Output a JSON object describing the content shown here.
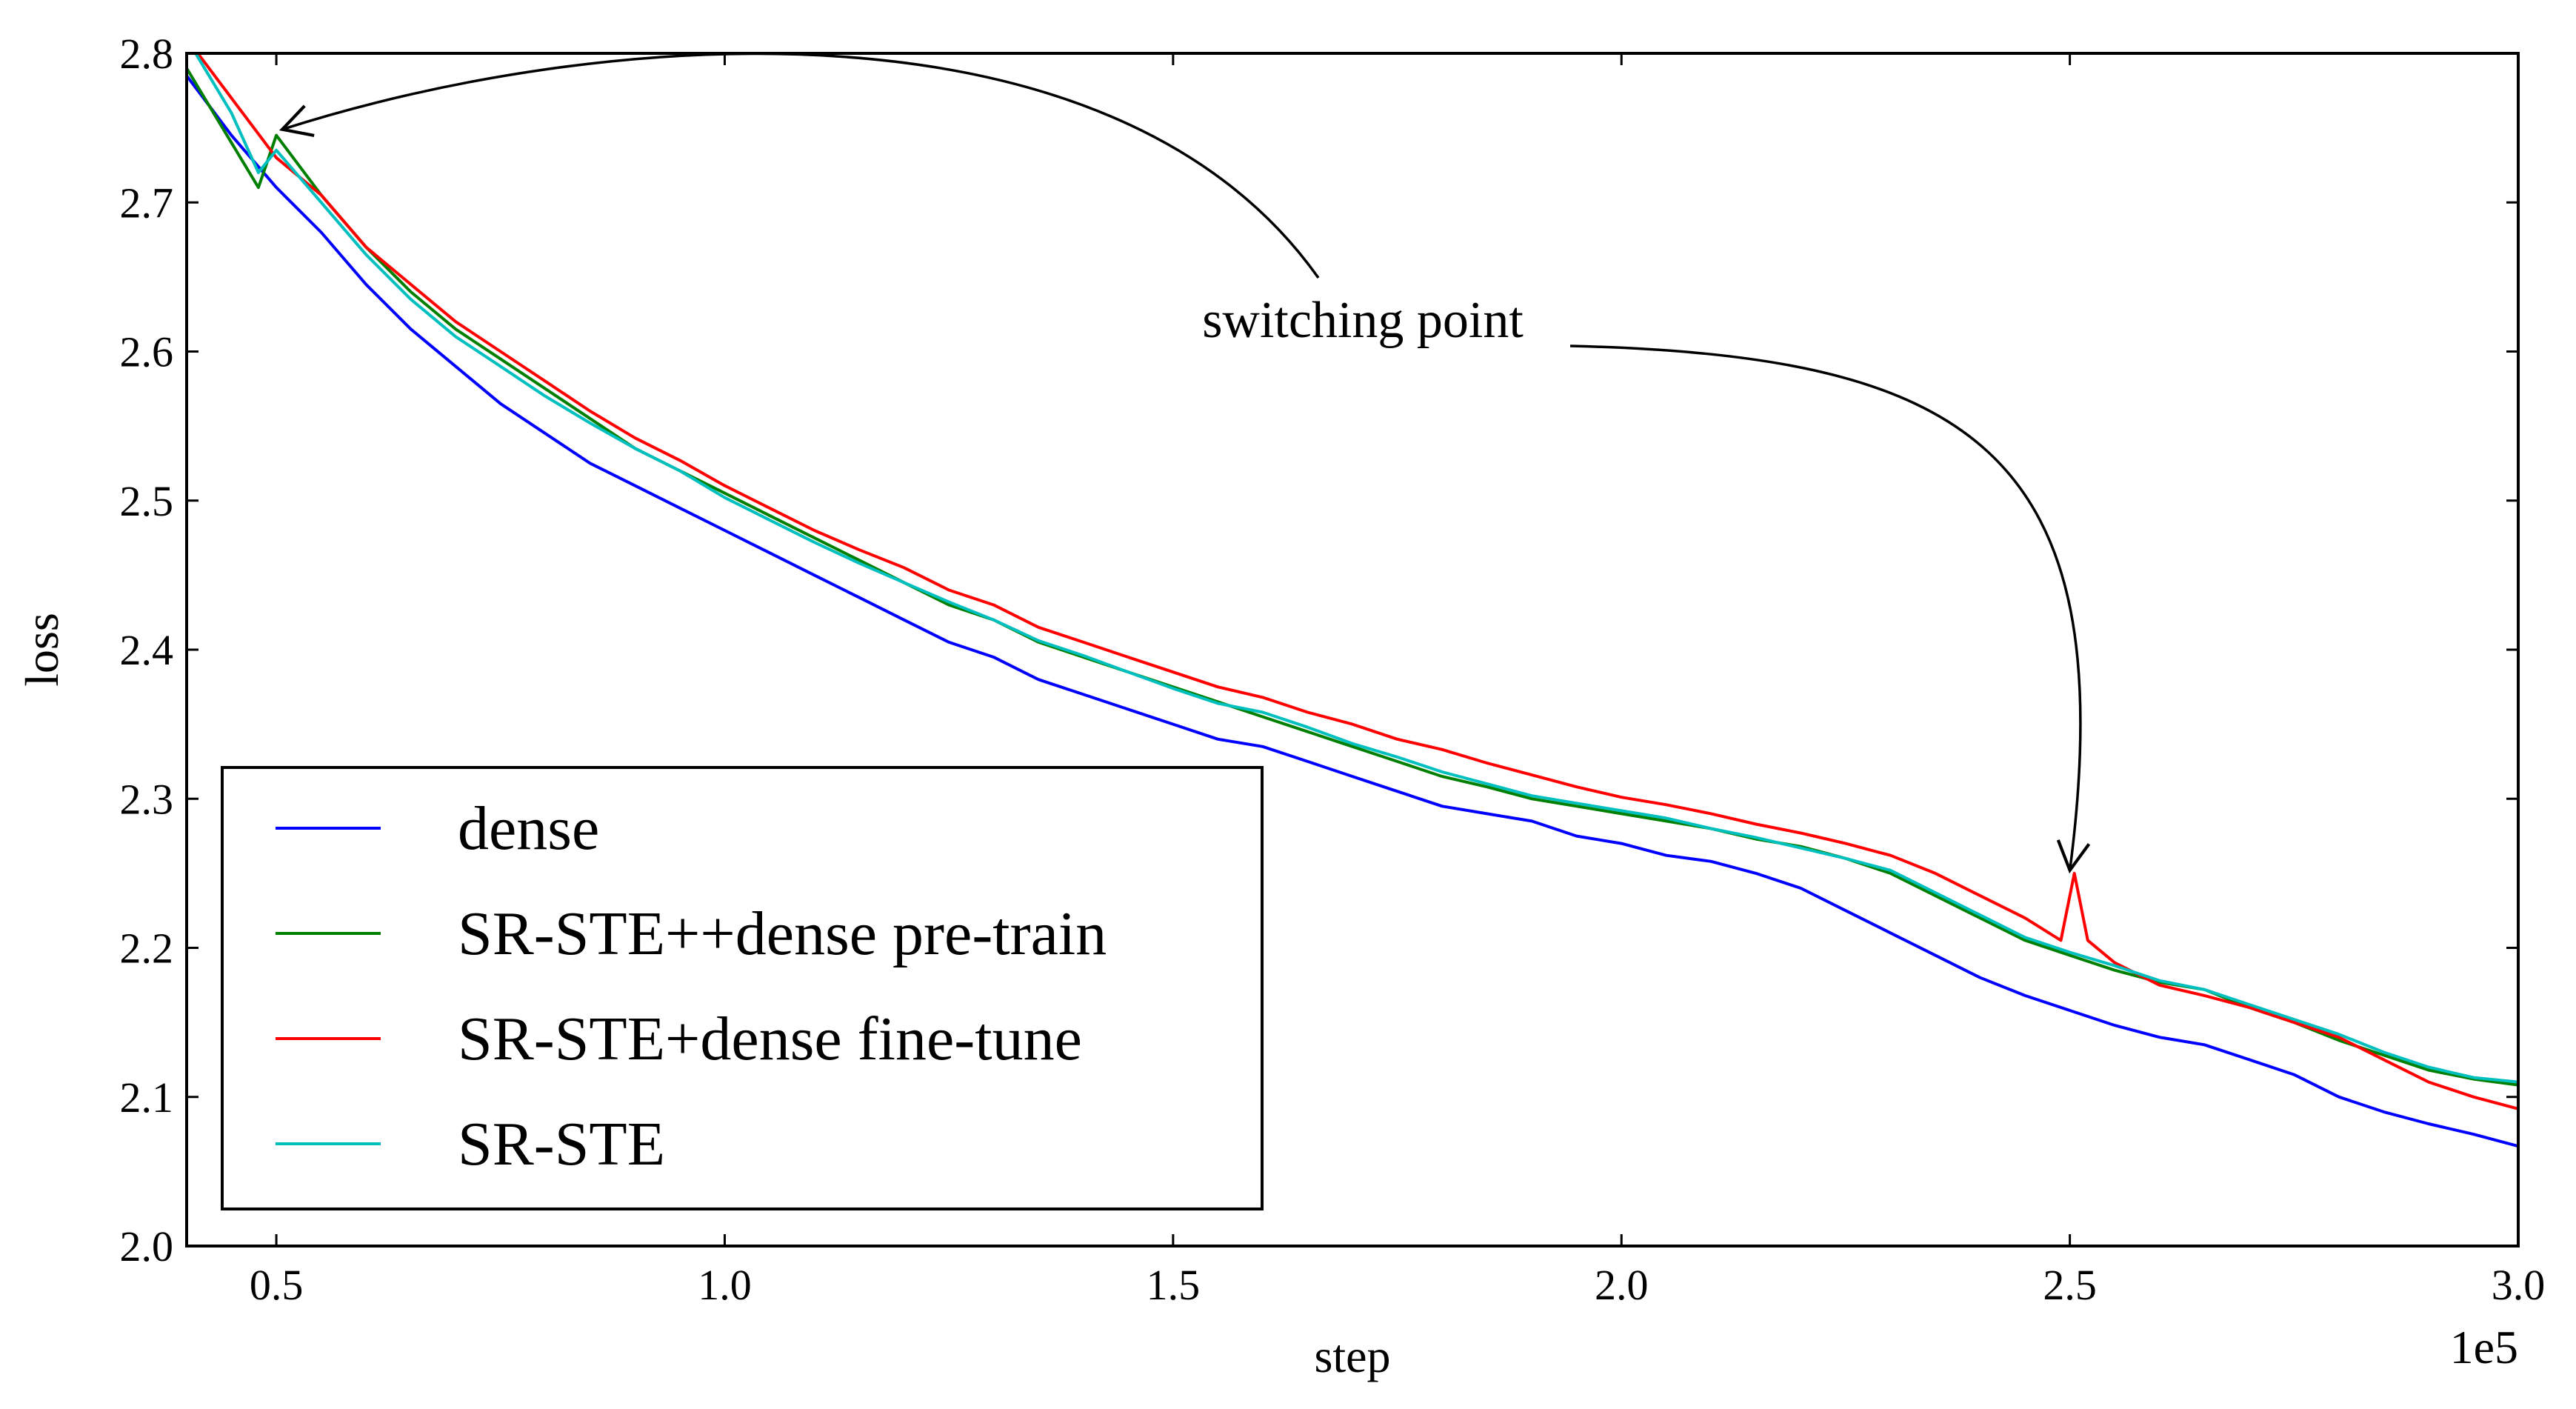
{
  "chart_data": {
    "type": "line",
    "title": "",
    "xlabel": "step",
    "ylabel": "loss",
    "x_offset_label": "1e5",
    "xlim": [
      0.4,
      3.0
    ],
    "ylim": [
      2.0,
      2.8
    ],
    "xticks": [
      0.5,
      1.0,
      1.5,
      2.0,
      2.5,
      3.0
    ],
    "xtick_labels": [
      "0.5",
      "1.0",
      "1.5",
      "2.0",
      "2.5",
      "3.0"
    ],
    "yticks": [
      2.0,
      2.1,
      2.2,
      2.3,
      2.4,
      2.5,
      2.6,
      2.7,
      2.8
    ],
    "ytick_labels": [
      "2.0",
      "2.1",
      "2.2",
      "2.3",
      "2.4",
      "2.5",
      "2.6",
      "2.7",
      "2.8"
    ],
    "grid": false,
    "legend_position": "bottom-left",
    "series": [
      {
        "name": "dense",
        "color": "#0000ff",
        "x": [
          0.4,
          0.45,
          0.5,
          0.55,
          0.6,
          0.65,
          0.7,
          0.75,
          0.8,
          0.85,
          0.9,
          0.95,
          1.0,
          1.05,
          1.1,
          1.15,
          1.2,
          1.25,
          1.3,
          1.35,
          1.4,
          1.45,
          1.5,
          1.55,
          1.6,
          1.65,
          1.7,
          1.75,
          1.8,
          1.85,
          1.9,
          1.95,
          2.0,
          2.05,
          2.1,
          2.15,
          2.2,
          2.25,
          2.3,
          2.35,
          2.4,
          2.45,
          2.5,
          2.55,
          2.6,
          2.65,
          2.7,
          2.75,
          2.8,
          2.85,
          2.9,
          2.95,
          3.0
        ],
        "y": [
          2.785,
          2.745,
          2.71,
          2.68,
          2.645,
          2.615,
          2.59,
          2.565,
          2.545,
          2.525,
          2.51,
          2.495,
          2.48,
          2.465,
          2.45,
          2.435,
          2.42,
          2.405,
          2.395,
          2.38,
          2.37,
          2.36,
          2.35,
          2.34,
          2.335,
          2.325,
          2.315,
          2.305,
          2.295,
          2.29,
          2.285,
          2.275,
          2.27,
          2.262,
          2.258,
          2.25,
          2.24,
          2.225,
          2.21,
          2.195,
          2.18,
          2.168,
          2.158,
          2.148,
          2.14,
          2.135,
          2.125,
          2.115,
          2.1,
          2.09,
          2.082,
          2.075,
          2.067
        ]
      },
      {
        "name": "SR-STE++dense pre-train",
        "color": "#007f00",
        "x": [
          0.4,
          0.45,
          0.48,
          0.5,
          0.55,
          0.6,
          0.65,
          0.7,
          0.75,
          0.8,
          0.85,
          0.9,
          0.95,
          1.0,
          1.05,
          1.1,
          1.15,
          1.2,
          1.25,
          1.3,
          1.35,
          1.4,
          1.45,
          1.5,
          1.55,
          1.6,
          1.65,
          1.7,
          1.75,
          1.8,
          1.85,
          1.9,
          1.95,
          2.0,
          2.05,
          2.1,
          2.15,
          2.2,
          2.25,
          2.3,
          2.35,
          2.4,
          2.45,
          2.5,
          2.55,
          2.6,
          2.65,
          2.7,
          2.75,
          2.8,
          2.85,
          2.9,
          2.95,
          3.0
        ],
        "y": [
          2.79,
          2.74,
          2.71,
          2.745,
          2.705,
          2.67,
          2.64,
          2.615,
          2.595,
          2.575,
          2.555,
          2.535,
          2.52,
          2.505,
          2.49,
          2.475,
          2.46,
          2.445,
          2.43,
          2.42,
          2.405,
          2.395,
          2.385,
          2.375,
          2.365,
          2.355,
          2.345,
          2.335,
          2.325,
          2.315,
          2.308,
          2.3,
          2.295,
          2.29,
          2.285,
          2.28,
          2.273,
          2.268,
          2.26,
          2.25,
          2.235,
          2.22,
          2.205,
          2.195,
          2.185,
          2.177,
          2.172,
          2.16,
          2.15,
          2.138,
          2.128,
          2.118,
          2.112,
          2.108
        ]
      },
      {
        "name": "SR-STE+dense fine-tune",
        "color": "#ff0000",
        "x": [
          0.4,
          0.45,
          0.5,
          0.55,
          0.6,
          0.65,
          0.7,
          0.75,
          0.8,
          0.85,
          0.9,
          0.95,
          1.0,
          1.05,
          1.1,
          1.15,
          1.2,
          1.25,
          1.3,
          1.35,
          1.4,
          1.45,
          1.5,
          1.55,
          1.6,
          1.65,
          1.7,
          1.75,
          1.8,
          1.85,
          1.9,
          1.95,
          2.0,
          2.05,
          2.1,
          2.15,
          2.2,
          2.25,
          2.3,
          2.35,
          2.4,
          2.45,
          2.49,
          2.505,
          2.52,
          2.55,
          2.6,
          2.65,
          2.7,
          2.75,
          2.8,
          2.85,
          2.9,
          2.95,
          3.0
        ],
        "y": [
          2.81,
          2.77,
          2.73,
          2.705,
          2.67,
          2.645,
          2.62,
          2.6,
          2.58,
          2.56,
          2.542,
          2.527,
          2.51,
          2.495,
          2.48,
          2.467,
          2.455,
          2.44,
          2.43,
          2.415,
          2.405,
          2.395,
          2.385,
          2.375,
          2.368,
          2.358,
          2.35,
          2.34,
          2.333,
          2.324,
          2.316,
          2.308,
          2.301,
          2.296,
          2.29,
          2.283,
          2.277,
          2.27,
          2.262,
          2.25,
          2.235,
          2.22,
          2.205,
          2.25,
          2.205,
          2.19,
          2.175,
          2.168,
          2.16,
          2.15,
          2.14,
          2.125,
          2.11,
          2.1,
          2.092
        ]
      },
      {
        "name": "SR-STE",
        "color": "#00bfbf",
        "x": [
          0.4,
          0.45,
          0.48,
          0.5,
          0.55,
          0.6,
          0.65,
          0.7,
          0.75,
          0.8,
          0.85,
          0.9,
          0.95,
          1.0,
          1.05,
          1.1,
          1.15,
          1.2,
          1.25,
          1.3,
          1.35,
          1.4,
          1.45,
          1.5,
          1.55,
          1.6,
          1.65,
          1.7,
          1.75,
          1.8,
          1.85,
          1.9,
          1.95,
          2.0,
          2.05,
          2.1,
          2.15,
          2.2,
          2.25,
          2.3,
          2.35,
          2.4,
          2.45,
          2.5,
          2.55,
          2.6,
          2.65,
          2.7,
          2.75,
          2.8,
          2.85,
          2.9,
          2.95,
          3.0
        ],
        "y": [
          2.81,
          2.76,
          2.72,
          2.735,
          2.7,
          2.665,
          2.635,
          2.61,
          2.59,
          2.57,
          2.552,
          2.535,
          2.52,
          2.502,
          2.487,
          2.472,
          2.458,
          2.445,
          2.432,
          2.42,
          2.406,
          2.396,
          2.385,
          2.374,
          2.364,
          2.358,
          2.348,
          2.337,
          2.328,
          2.318,
          2.31,
          2.302,
          2.297,
          2.292,
          2.287,
          2.28,
          2.274,
          2.267,
          2.26,
          2.252,
          2.237,
          2.222,
          2.207,
          2.197,
          2.188,
          2.178,
          2.172,
          2.162,
          2.152,
          2.142,
          2.13,
          2.12,
          2.113,
          2.11
        ]
      }
    ],
    "annotation": {
      "text": "switching point",
      "targets": [
        {
          "x": 0.5,
          "y": 2.745
        },
        {
          "x": 2.5,
          "y": 2.255
        }
      ]
    }
  }
}
